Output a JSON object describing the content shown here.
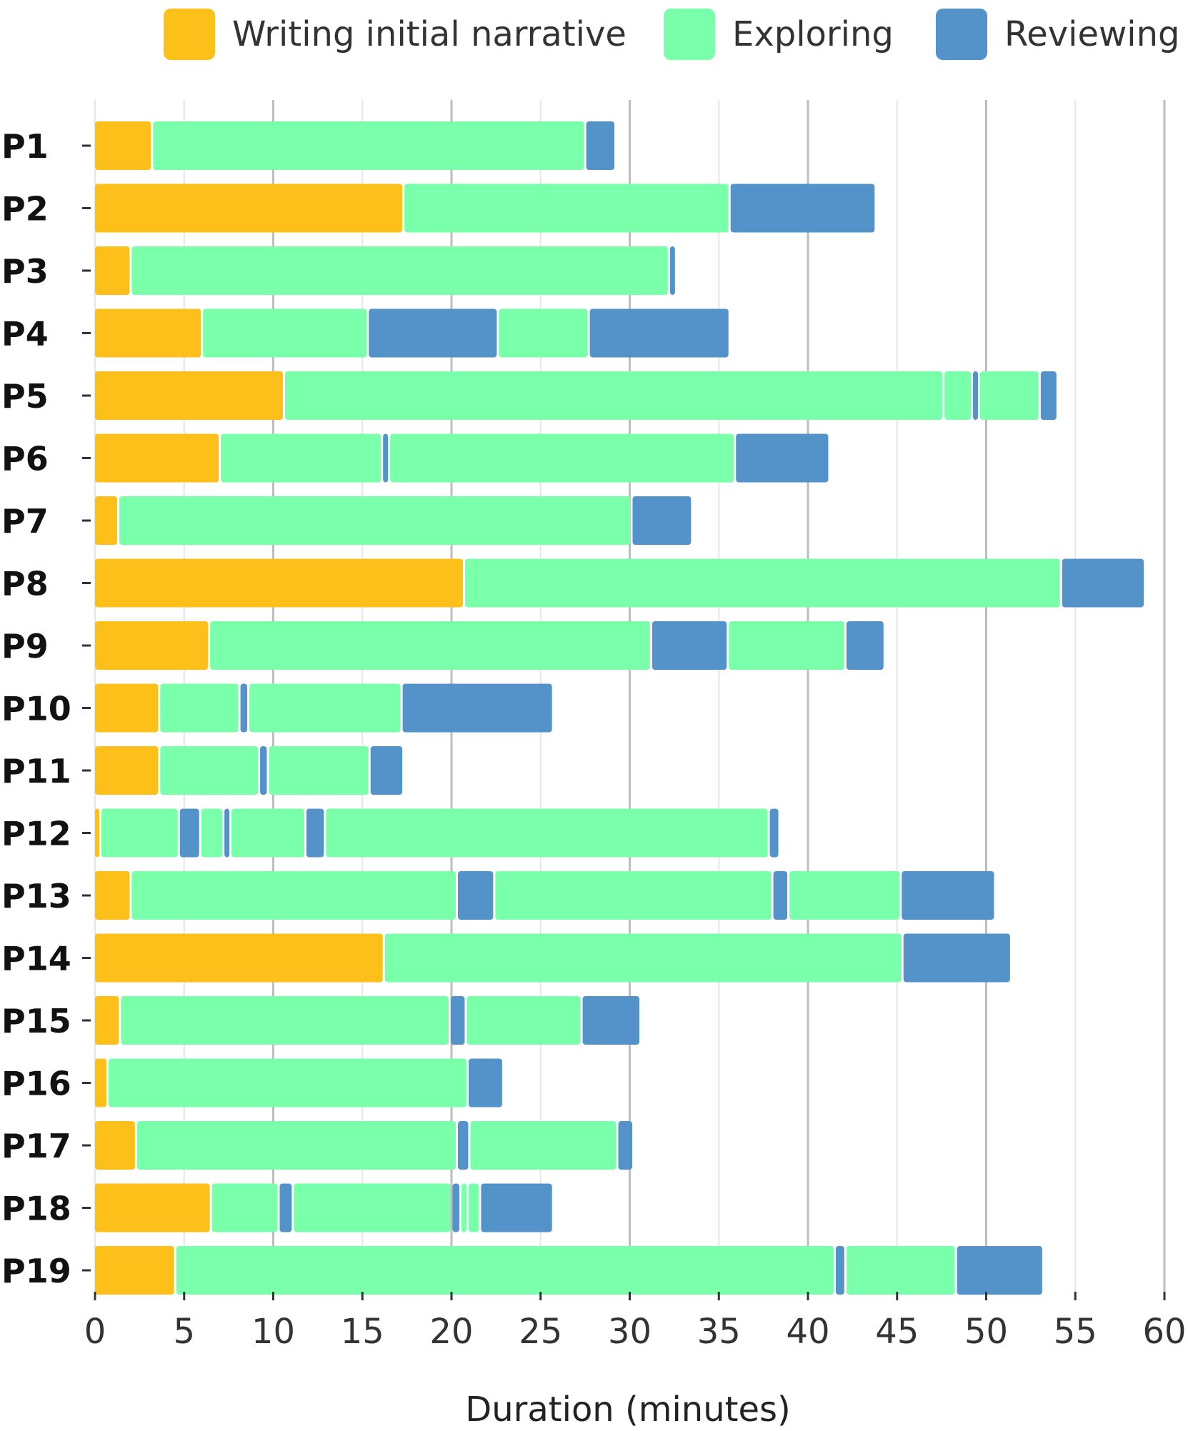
{
  "chart_data": {
    "type": "bar",
    "orientation": "horizontal-stacked-timeline",
    "title": "",
    "xlabel": "Duration (minutes)",
    "ylabel": "",
    "xlim": [
      0,
      60
    ],
    "xticks": [
      0,
      5,
      10,
      15,
      20,
      25,
      30,
      35,
      40,
      45,
      50,
      55,
      60
    ],
    "grid": "vertical",
    "legend_position": "top",
    "legend": [
      {
        "key": "W",
        "label": "Writing initial narrative",
        "color": "#FDBF1A"
      },
      {
        "key": "E",
        "label": "Exploring",
        "color": "#7AFFAA"
      },
      {
        "key": "R",
        "label": "Reviewing",
        "color": "#5393C9"
      }
    ],
    "participants": [
      {
        "label": "P1",
        "segments": [
          [
            "W",
            0,
            3.2
          ],
          [
            "E",
            3.2,
            27.5
          ],
          [
            "R",
            27.5,
            29.2
          ]
        ]
      },
      {
        "label": "P2",
        "segments": [
          [
            "W",
            0,
            17.3
          ],
          [
            "E",
            17.3,
            35.6
          ],
          [
            "R",
            35.6,
            43.8
          ]
        ]
      },
      {
        "label": "P3",
        "segments": [
          [
            "W",
            0,
            2.0
          ],
          [
            "E",
            2.0,
            32.2
          ],
          [
            "R",
            32.2,
            32.6
          ]
        ]
      },
      {
        "label": "P4",
        "segments": [
          [
            "W",
            0,
            6.0
          ],
          [
            "E",
            6.0,
            15.3
          ],
          [
            "R",
            15.3,
            22.6
          ],
          [
            "E",
            22.6,
            27.7
          ],
          [
            "R",
            27.7,
            35.6
          ]
        ]
      },
      {
        "label": "P5",
        "segments": [
          [
            "W",
            0,
            10.6
          ],
          [
            "E",
            10.6,
            47.6
          ],
          [
            "E",
            47.6,
            49.2
          ],
          [
            "R",
            49.2,
            49.6
          ],
          [
            "E",
            49.6,
            53.0
          ],
          [
            "R",
            53.0,
            54.0
          ]
        ]
      },
      {
        "label": "P6",
        "segments": [
          [
            "W",
            0,
            7.0
          ],
          [
            "E",
            7.0,
            16.1
          ],
          [
            "R",
            16.1,
            16.5
          ],
          [
            "E",
            16.5,
            35.9
          ],
          [
            "R",
            35.9,
            41.2
          ]
        ]
      },
      {
        "label": "P7",
        "segments": [
          [
            "W",
            0,
            1.3
          ],
          [
            "E",
            1.3,
            30.1
          ],
          [
            "R",
            30.1,
            33.5
          ]
        ]
      },
      {
        "label": "P8",
        "segments": [
          [
            "W",
            0,
            20.7
          ],
          [
            "E",
            20.7,
            54.2
          ],
          [
            "R",
            54.2,
            58.9
          ]
        ]
      },
      {
        "label": "P9",
        "segments": [
          [
            "W",
            0,
            6.4
          ],
          [
            "E",
            6.4,
            31.2
          ],
          [
            "R",
            31.2,
            35.5
          ],
          [
            "E",
            35.5,
            42.1
          ],
          [
            "R",
            42.1,
            44.3
          ]
        ]
      },
      {
        "label": "P10",
        "segments": [
          [
            "W",
            0,
            3.6
          ],
          [
            "E",
            3.6,
            8.1
          ],
          [
            "R",
            8.1,
            8.6
          ],
          [
            "E",
            8.6,
            17.2
          ],
          [
            "R",
            17.2,
            25.7
          ]
        ]
      },
      {
        "label": "P11",
        "segments": [
          [
            "W",
            0,
            3.6
          ],
          [
            "E",
            3.6,
            9.2
          ],
          [
            "R",
            9.2,
            9.7
          ],
          [
            "E",
            9.7,
            15.4
          ],
          [
            "R",
            15.4,
            17.3
          ]
        ]
      },
      {
        "label": "P12",
        "segments": [
          [
            "W",
            0,
            0.3
          ],
          [
            "E",
            0.3,
            4.7
          ],
          [
            "R",
            4.7,
            5.9
          ],
          [
            "E",
            5.9,
            7.2
          ],
          [
            "R",
            7.2,
            7.6
          ],
          [
            "E",
            7.6,
            11.8
          ],
          [
            "R",
            11.8,
            12.9
          ],
          [
            "E",
            12.9,
            37.8
          ],
          [
            "R",
            37.8,
            38.4
          ]
        ]
      },
      {
        "label": "P13",
        "segments": [
          [
            "W",
            0,
            2.0
          ],
          [
            "E",
            2.0,
            20.3
          ],
          [
            "R",
            20.3,
            22.4
          ],
          [
            "E",
            22.4,
            38.0
          ],
          [
            "R",
            38.0,
            38.9
          ],
          [
            "E",
            38.9,
            45.2
          ],
          [
            "R",
            45.2,
            50.5
          ]
        ]
      },
      {
        "label": "P14",
        "segments": [
          [
            "W",
            0,
            16.2
          ],
          [
            "E",
            16.2,
            45.3
          ],
          [
            "R",
            45.3,
            51.4
          ]
        ]
      },
      {
        "label": "P15",
        "segments": [
          [
            "W",
            0,
            1.4
          ],
          [
            "E",
            1.4,
            19.9
          ],
          [
            "R",
            19.9,
            20.8
          ],
          [
            "E",
            20.8,
            27.3
          ],
          [
            "R",
            27.3,
            30.6
          ]
        ]
      },
      {
        "label": "P16",
        "segments": [
          [
            "W",
            0,
            0.7
          ],
          [
            "E",
            0.7,
            20.9
          ],
          [
            "R",
            20.9,
            22.9
          ]
        ]
      },
      {
        "label": "P17",
        "segments": [
          [
            "W",
            0,
            2.3
          ],
          [
            "E",
            2.3,
            20.3
          ],
          [
            "R",
            20.3,
            21.0
          ],
          [
            "E",
            21.0,
            29.3
          ],
          [
            "R",
            29.3,
            30.2
          ]
        ]
      },
      {
        "label": "P18",
        "segments": [
          [
            "W",
            0,
            6.5
          ],
          [
            "E",
            6.5,
            10.3
          ],
          [
            "R",
            10.3,
            11.1
          ],
          [
            "E",
            11.1,
            20.0
          ],
          [
            "R",
            20.0,
            20.5
          ],
          [
            "E",
            20.5,
            20.9
          ],
          [
            "E",
            20.9,
            21.6
          ],
          [
            "R",
            21.6,
            25.7
          ]
        ]
      },
      {
        "label": "P19",
        "segments": [
          [
            "W",
            0,
            4.5
          ],
          [
            "E",
            4.5,
            41.5
          ],
          [
            "R",
            41.5,
            42.1
          ],
          [
            "E",
            42.1,
            48.3
          ],
          [
            "R",
            48.3,
            53.2
          ]
        ]
      }
    ]
  }
}
